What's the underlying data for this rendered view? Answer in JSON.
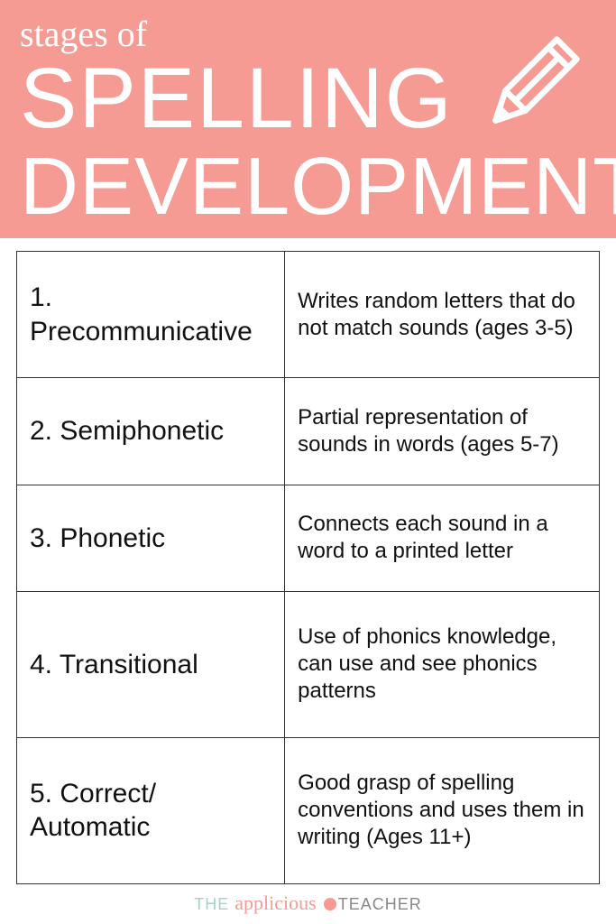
{
  "header": {
    "subtitle": "stages of",
    "title_line1": "SPELLING",
    "title_line2": "DEVELOPMENT",
    "background_color": "#f59b94",
    "text_color": "#ffffff"
  },
  "table": {
    "border_color": "#333333",
    "rows": [
      {
        "num": "1.",
        "name": "Precommunicative",
        "desc": "Writes random letters that do not match sounds (ages 3-5)"
      },
      {
        "num": "2.",
        "name": "Semiphonetic",
        "desc": "Partial representation of sounds in words (ages 5-7)"
      },
      {
        "num": "3.",
        "name": "Phonetic",
        "desc": "Connects each sound in a word to a printed letter"
      },
      {
        "num": "4.",
        "name": "Transitional",
        "desc": "Use of phonics knowledge, can use and see phonics patterns"
      },
      {
        "num": "5.",
        "name": "Correct/ Automatic",
        "desc": "Good grasp of spelling conventions and uses them in writing (Ages 11+)"
      }
    ]
  },
  "footer": {
    "the": "THE",
    "script": "applicious",
    "teacher": "TEACHER",
    "the_color": "#9fd6c5",
    "script_color": "#f59b94",
    "teacher_color": "#888888"
  }
}
